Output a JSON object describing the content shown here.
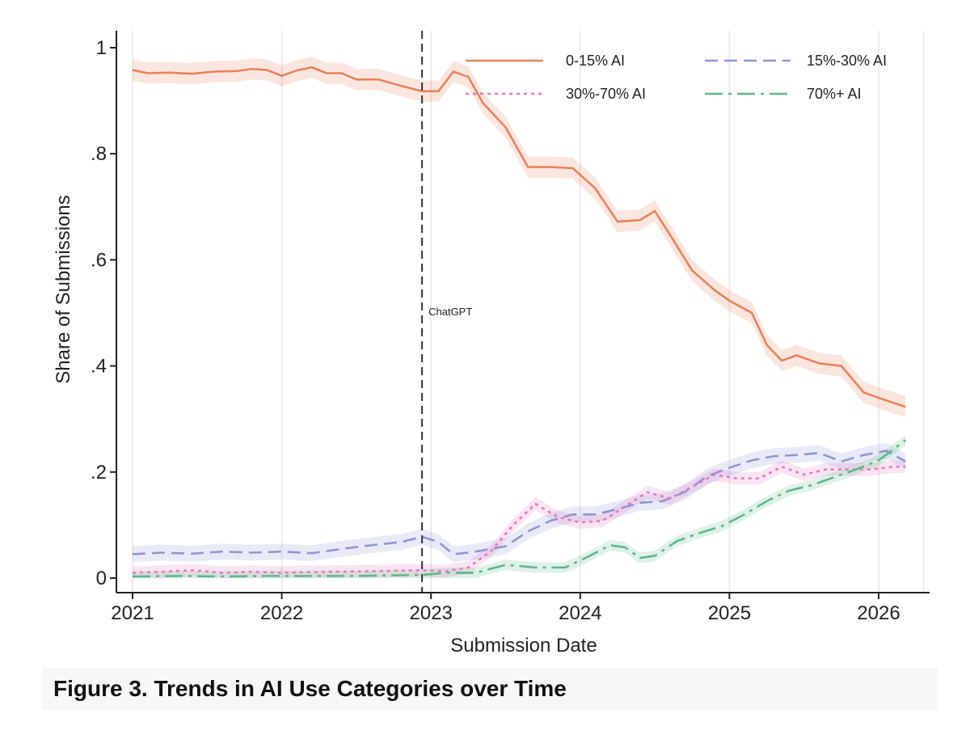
{
  "caption": "Figure 3. Trends in AI Use Categories over Time",
  "chart_data": {
    "type": "line",
    "xlabel": "Submission Date",
    "ylabel": "Share of Submissions",
    "xlim": [
      2021.0,
      2026.35
    ],
    "ylim": [
      0,
      1.03
    ],
    "x_ticks": [
      2021,
      2022,
      2023,
      2024,
      2025,
      2026
    ],
    "x_tick_labels": [
      "2021",
      "2022",
      "2023",
      "2024",
      "2025",
      "2026"
    ],
    "y_ticks": [
      0,
      0.2,
      0.4,
      0.6,
      0.8,
      1
    ],
    "y_tick_labels": [
      "0",
      ".2",
      ".4",
      ".6",
      ".8",
      "1"
    ],
    "grid": "vertical",
    "legend": "top-right",
    "annotations": [
      {
        "x": 2022.94,
        "text": "ChatGPT",
        "style": "dashed-vertical-line"
      }
    ],
    "series": [
      {
        "name": "0-15% AI",
        "color": "#e8825a",
        "style": "solid",
        "band_halfwidth": 0.02,
        "points": [
          [
            2021.0,
            0.958
          ],
          [
            2021.1,
            0.952
          ],
          [
            2021.25,
            0.953
          ],
          [
            2021.4,
            0.951
          ],
          [
            2021.55,
            0.955
          ],
          [
            2021.7,
            0.956
          ],
          [
            2021.8,
            0.96
          ],
          [
            2021.9,
            0.958
          ],
          [
            2022.0,
            0.947
          ],
          [
            2022.1,
            0.957
          ],
          [
            2022.2,
            0.963
          ],
          [
            2022.3,
            0.952
          ],
          [
            2022.4,
            0.952
          ],
          [
            2022.5,
            0.94
          ],
          [
            2022.65,
            0.94
          ],
          [
            2022.8,
            0.928
          ],
          [
            2022.94,
            0.918
          ],
          [
            2023.05,
            0.918
          ],
          [
            2023.15,
            0.955
          ],
          [
            2023.25,
            0.945
          ],
          [
            2023.35,
            0.895
          ],
          [
            2023.5,
            0.85
          ],
          [
            2023.65,
            0.775
          ],
          [
            2023.8,
            0.775
          ],
          [
            2023.95,
            0.773
          ],
          [
            2024.1,
            0.735
          ],
          [
            2024.25,
            0.672
          ],
          [
            2024.4,
            0.675
          ],
          [
            2024.5,
            0.692
          ],
          [
            2024.6,
            0.648
          ],
          [
            2024.75,
            0.58
          ],
          [
            2024.9,
            0.543
          ],
          [
            2025.0,
            0.523
          ],
          [
            2025.15,
            0.5
          ],
          [
            2025.25,
            0.44
          ],
          [
            2025.35,
            0.41
          ],
          [
            2025.45,
            0.42
          ],
          [
            2025.6,
            0.405
          ],
          [
            2025.75,
            0.4
          ],
          [
            2025.9,
            0.35
          ],
          [
            2026.05,
            0.335
          ],
          [
            2026.18,
            0.323
          ]
        ]
      },
      {
        "name": "15%-30% AI",
        "color": "#8f95d6",
        "style": "dashed",
        "band_halfwidth": 0.015,
        "points": [
          [
            2021.0,
            0.045
          ],
          [
            2021.2,
            0.048
          ],
          [
            2021.4,
            0.046
          ],
          [
            2021.6,
            0.05
          ],
          [
            2021.8,
            0.048
          ],
          [
            2022.0,
            0.05
          ],
          [
            2022.2,
            0.047
          ],
          [
            2022.4,
            0.055
          ],
          [
            2022.6,
            0.062
          ],
          [
            2022.8,
            0.068
          ],
          [
            2022.94,
            0.078
          ],
          [
            2023.05,
            0.068
          ],
          [
            2023.15,
            0.045
          ],
          [
            2023.3,
            0.05
          ],
          [
            2023.5,
            0.06
          ],
          [
            2023.65,
            0.088
          ],
          [
            2023.8,
            0.108
          ],
          [
            2023.95,
            0.12
          ],
          [
            2024.1,
            0.12
          ],
          [
            2024.25,
            0.13
          ],
          [
            2024.4,
            0.142
          ],
          [
            2024.55,
            0.145
          ],
          [
            2024.7,
            0.162
          ],
          [
            2024.85,
            0.192
          ],
          [
            2025.0,
            0.208
          ],
          [
            2025.15,
            0.222
          ],
          [
            2025.3,
            0.23
          ],
          [
            2025.45,
            0.232
          ],
          [
            2025.6,
            0.236
          ],
          [
            2025.75,
            0.22
          ],
          [
            2025.9,
            0.232
          ],
          [
            2026.05,
            0.24
          ],
          [
            2026.18,
            0.22
          ]
        ]
      },
      {
        "name": "30%-70% AI",
        "color": "#e27ac0",
        "style": "dotted",
        "band_halfwidth": 0.012,
        "points": [
          [
            2021.0,
            0.01
          ],
          [
            2021.2,
            0.012
          ],
          [
            2021.4,
            0.015
          ],
          [
            2021.6,
            0.01
          ],
          [
            2021.8,
            0.012
          ],
          [
            2022.0,
            0.01
          ],
          [
            2022.3,
            0.012
          ],
          [
            2022.6,
            0.013
          ],
          [
            2022.94,
            0.015
          ],
          [
            2023.1,
            0.013
          ],
          [
            2023.25,
            0.02
          ],
          [
            2023.4,
            0.05
          ],
          [
            2023.55,
            0.1
          ],
          [
            2023.7,
            0.14
          ],
          [
            2023.85,
            0.115
          ],
          [
            2024.0,
            0.105
          ],
          [
            2024.15,
            0.108
          ],
          [
            2024.3,
            0.135
          ],
          [
            2024.45,
            0.162
          ],
          [
            2024.6,
            0.15
          ],
          [
            2024.75,
            0.172
          ],
          [
            2024.9,
            0.195
          ],
          [
            2025.05,
            0.188
          ],
          [
            2025.2,
            0.188
          ],
          [
            2025.35,
            0.21
          ],
          [
            2025.5,
            0.195
          ],
          [
            2025.65,
            0.205
          ],
          [
            2025.8,
            0.205
          ],
          [
            2025.95,
            0.205
          ],
          [
            2026.1,
            0.21
          ],
          [
            2026.18,
            0.21
          ]
        ]
      },
      {
        "name": "70%+ AI",
        "color": "#5fb88a",
        "style": "dashdot",
        "band_halfwidth": 0.01,
        "points": [
          [
            2021.0,
            0.003
          ],
          [
            2021.3,
            0.004
          ],
          [
            2021.6,
            0.003
          ],
          [
            2021.9,
            0.004
          ],
          [
            2022.2,
            0.004
          ],
          [
            2022.5,
            0.004
          ],
          [
            2022.94,
            0.006
          ],
          [
            2023.1,
            0.01
          ],
          [
            2023.3,
            0.01
          ],
          [
            2023.5,
            0.025
          ],
          [
            2023.7,
            0.02
          ],
          [
            2023.9,
            0.02
          ],
          [
            2024.05,
            0.04
          ],
          [
            2024.2,
            0.062
          ],
          [
            2024.3,
            0.058
          ],
          [
            2024.4,
            0.038
          ],
          [
            2024.5,
            0.042
          ],
          [
            2024.65,
            0.07
          ],
          [
            2024.8,
            0.085
          ],
          [
            2024.95,
            0.098
          ],
          [
            2025.1,
            0.12
          ],
          [
            2025.25,
            0.145
          ],
          [
            2025.4,
            0.165
          ],
          [
            2025.55,
            0.175
          ],
          [
            2025.7,
            0.19
          ],
          [
            2025.85,
            0.205
          ],
          [
            2026.0,
            0.222
          ],
          [
            2026.18,
            0.26
          ]
        ]
      }
    ]
  }
}
